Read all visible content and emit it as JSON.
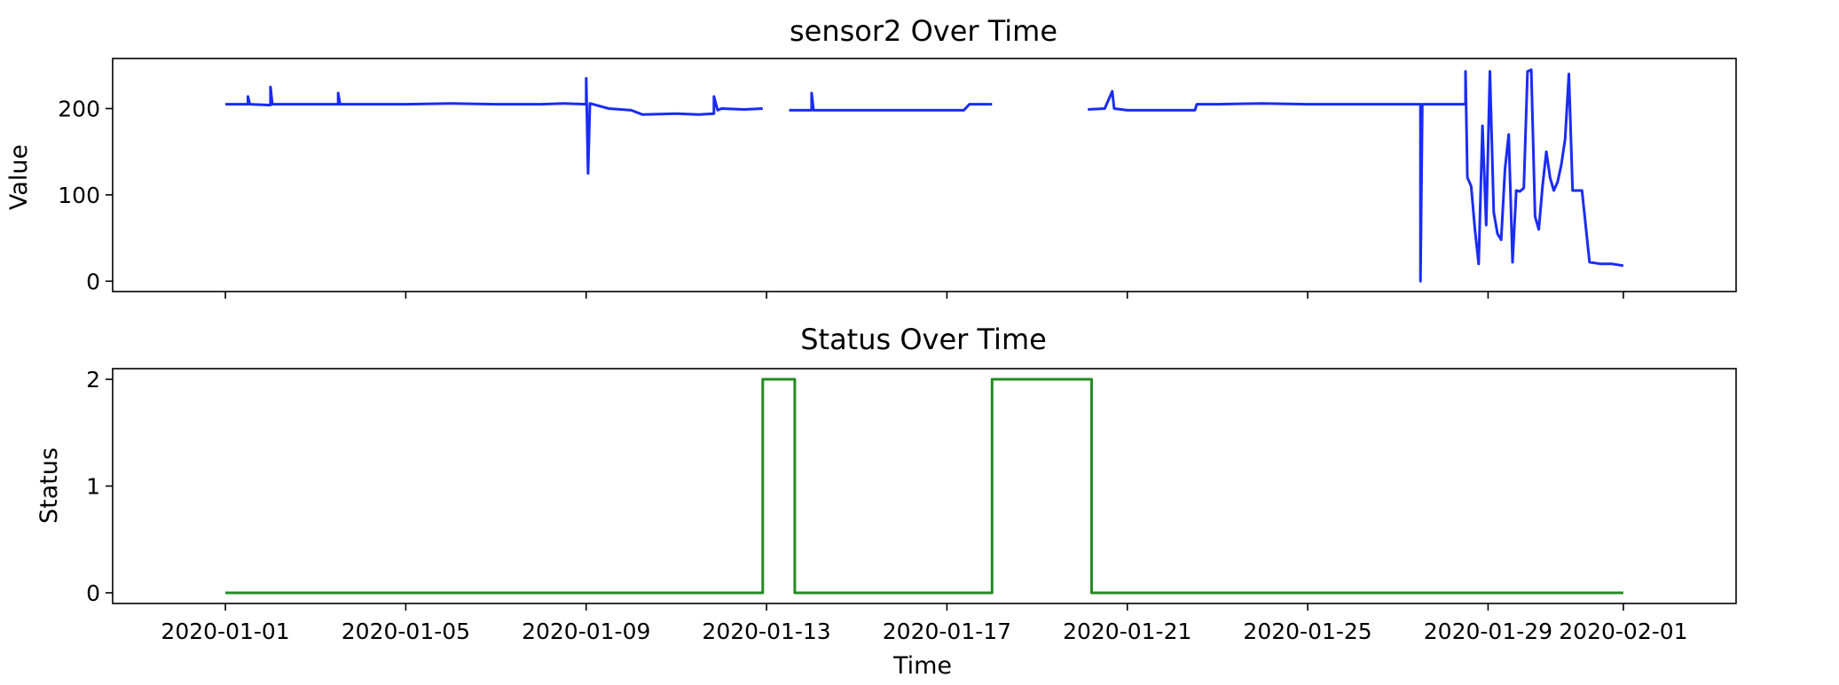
{
  "chart_data": [
    {
      "type": "line",
      "title": "sensor2 Over Time",
      "xlabel": "",
      "ylabel": "Value",
      "ylim": [
        -12,
        258
      ],
      "yticks": [
        0,
        100,
        200
      ],
      "x_range": [
        "2019-12-29T12:00",
        "2020-02-03T12:00"
      ],
      "color": "#1a2cf5",
      "segments": [
        {
          "x": [
            "2020-01-01T00:00",
            "2020-01-01T12:00",
            "2020-01-01T12:00",
            "2020-01-01T13:00",
            "2020-01-02T00:00",
            "2020-01-02T00:00",
            "2020-01-02T01:00",
            "2020-01-03T00:00",
            "2020-01-03T12:00",
            "2020-01-03T12:00",
            "2020-01-03T13:00",
            "2020-01-04T00:00",
            "2020-01-05T00:00",
            "2020-01-06T00:00",
            "2020-01-07T00:00",
            "2020-01-08T00:00",
            "2020-01-08T12:00",
            "2020-01-09T00:00",
            "2020-01-09T00:00",
            "2020-01-09T01:00",
            "2020-01-09T02:00",
            "2020-01-09T12:00",
            "2020-01-10T00:00",
            "2020-01-10T06:00",
            "2020-01-11T00:00",
            "2020-01-11T12:00",
            "2020-01-11T20:00",
            "2020-01-11T20:00",
            "2020-01-11T22:00",
            "2020-01-12T00:00",
            "2020-01-12T12:00",
            "2020-01-12T22:00"
          ],
          "y": [
            205,
            205,
            214,
            205,
            204,
            225,
            205,
            205,
            205,
            218,
            205,
            205,
            205,
            206,
            205,
            205,
            206,
            205,
            235,
            125,
            206,
            200,
            198,
            193,
            194,
            193,
            194,
            214,
            198,
            200,
            199,
            200
          ]
        },
        {
          "x": [
            "2020-01-13T12:00",
            "2020-01-14T00:00",
            "2020-01-14T00:00",
            "2020-01-14T01:00",
            "2020-01-15T00:00",
            "2020-01-16T00:00",
            "2020-01-17T00:00",
            "2020-01-17T09:00",
            "2020-01-17T12:00",
            "2020-01-18T00:00"
          ],
          "y": [
            198,
            198,
            218,
            198,
            198,
            198,
            198,
            198,
            205,
            205
          ]
        },
        {
          "x": [
            "2020-01-20T03:00",
            "2020-01-20T12:00",
            "2020-01-20T16:00",
            "2020-01-20T17:00",
            "2020-01-21T00:00",
            "2020-01-22T00:00",
            "2020-01-22T12:00",
            "2020-01-22T13:00",
            "2020-01-23T00:00",
            "2020-01-24T00:00",
            "2020-01-25T00:00",
            "2020-01-26T00:00",
            "2020-01-27T00:00",
            "2020-01-27T12:00",
            "2020-01-27T12:00",
            "2020-01-27T13:00",
            "2020-01-27T13:00",
            "2020-01-28T12:00",
            "2020-01-28T12:00",
            "2020-01-28T13:00",
            "2020-01-28T15:00",
            "2020-01-28T17:00",
            "2020-01-28T19:00",
            "2020-01-28T21:00",
            "2020-01-28T23:00",
            "2020-01-29T01:00",
            "2020-01-29T03:00",
            "2020-01-29T05:00",
            "2020-01-29T07:00",
            "2020-01-29T09:00",
            "2020-01-29T11:00",
            "2020-01-29T13:00",
            "2020-01-29T15:00",
            "2020-01-29T17:00",
            "2020-01-29T19:00",
            "2020-01-29T21:00",
            "2020-01-29T23:00",
            "2020-01-30T01:00",
            "2020-01-30T03:00",
            "2020-01-30T05:00",
            "2020-01-30T07:00",
            "2020-01-30T09:00",
            "2020-01-30T11:00",
            "2020-01-30T13:00",
            "2020-01-30T15:00",
            "2020-01-30T17:00",
            "2020-01-30T19:00",
            "2020-01-30T21:00",
            "2020-01-30T23:00",
            "2020-01-31T02:00",
            "2020-01-31T06:00",
            "2020-01-31T12:00",
            "2020-01-31T18:00",
            "2020-02-01T00:00"
          ],
          "y": [
            199,
            200,
            220,
            200,
            198,
            198,
            198,
            205,
            205,
            206,
            205,
            205,
            205,
            205,
            0,
            205,
            205,
            205,
            243,
            120,
            110,
            60,
            20,
            180,
            65,
            243,
            80,
            55,
            48,
            130,
            170,
            22,
            105,
            104,
            108,
            243,
            245,
            75,
            60,
            110,
            150,
            120,
            105,
            115,
            135,
            165,
            240,
            105,
            105,
            105,
            22,
            20,
            20,
            18
          ]
        }
      ]
    },
    {
      "type": "line",
      "title": "Status Over Time",
      "xlabel": "Time",
      "ylabel": "Status",
      "ylim": [
        -0.1,
        2.1
      ],
      "yticks": [
        0,
        1,
        2
      ],
      "x_range": [
        "2019-12-29T12:00",
        "2020-02-03T12:00"
      ],
      "color": "#228B22",
      "xticks": [
        "2020-01-01",
        "2020-01-05",
        "2020-01-09",
        "2020-01-13",
        "2020-01-17",
        "2020-01-21",
        "2020-01-25",
        "2020-01-29",
        "2020-02-01"
      ],
      "x": [
        "2020-01-01T00:00",
        "2020-01-12T22:00",
        "2020-01-12T22:00",
        "2020-01-13T15:00",
        "2020-01-13T15:00",
        "2020-01-18T00:00",
        "2020-01-18T00:00",
        "2020-01-20T05:00",
        "2020-01-20T05:00",
        "2020-02-01T00:00"
      ],
      "y": [
        0,
        0,
        2,
        2,
        0,
        0,
        2,
        2,
        0,
        0
      ]
    }
  ]
}
